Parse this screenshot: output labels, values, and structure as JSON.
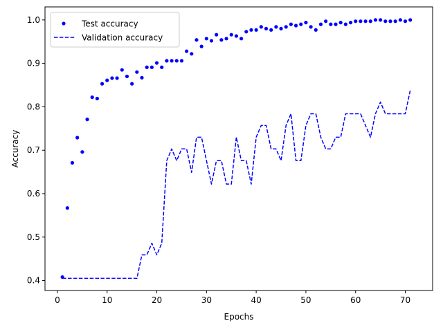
{
  "chart_data": {
    "type": "line",
    "title": "",
    "xlabel": "Epochs",
    "ylabel": "Accuracy",
    "xlim": [
      -2.5,
      75.5
    ],
    "ylim": [
      0.377,
      1.03
    ],
    "xticks": [
      0,
      10,
      20,
      30,
      40,
      50,
      60,
      70
    ],
    "yticks": [
      0.4,
      0.5,
      0.6,
      0.7,
      0.8,
      0.9,
      1.0
    ],
    "ytick_labels": [
      "0.4",
      "0.5",
      "0.6",
      "0.7",
      "0.8",
      "0.9",
      "1.0"
    ],
    "grid": false,
    "legend_position": "upper-left",
    "x": [
      1,
      2,
      3,
      4,
      5,
      6,
      7,
      8,
      9,
      10,
      11,
      12,
      13,
      14,
      15,
      16,
      17,
      18,
      19,
      20,
      21,
      22,
      23,
      24,
      25,
      26,
      27,
      28,
      29,
      30,
      31,
      32,
      33,
      34,
      35,
      36,
      37,
      38,
      39,
      40,
      41,
      42,
      43,
      44,
      45,
      46,
      47,
      48,
      49,
      50,
      51,
      52,
      53,
      54,
      55,
      56,
      57,
      58,
      59,
      60,
      61,
      62,
      63,
      64,
      65,
      66,
      67,
      68,
      69,
      70,
      71
    ],
    "series": [
      {
        "name": "Test accuracy",
        "style": "dots",
        "color": "#0000ff",
        "values": [
          0.408,
          0.567,
          0.671,
          0.729,
          0.696,
          0.771,
          0.822,
          0.819,
          0.853,
          0.861,
          0.866,
          0.866,
          0.885,
          0.87,
          0.853,
          0.88,
          0.867,
          0.891,
          0.891,
          0.901,
          0.891,
          0.906,
          0.906,
          0.906,
          0.906,
          0.928,
          0.922,
          0.954,
          0.939,
          0.957,
          0.952,
          0.966,
          0.954,
          0.957,
          0.966,
          0.963,
          0.957,
          0.973,
          0.977,
          0.977,
          0.984,
          0.98,
          0.977,
          0.984,
          0.98,
          0.984,
          0.99,
          0.987,
          0.99,
          0.994,
          0.984,
          0.977,
          0.99,
          0.997,
          0.99,
          0.99,
          0.994,
          0.99,
          0.994,
          0.997,
          0.997,
          0.997,
          0.997,
          1.0,
          1.0,
          0.997,
          0.997,
          0.997,
          1.0,
          0.997,
          1.0
        ]
      },
      {
        "name": "Validation accuracy",
        "style": "dashed",
        "color": "#0000ff",
        "values": [
          0.405,
          0.405,
          0.405,
          0.405,
          0.405,
          0.405,
          0.405,
          0.405,
          0.405,
          0.405,
          0.405,
          0.405,
          0.405,
          0.405,
          0.405,
          0.405,
          0.459,
          0.459,
          0.486,
          0.459,
          0.486,
          0.676,
          0.703,
          0.676,
          0.703,
          0.703,
          0.649,
          0.73,
          0.73,
          0.676,
          0.622,
          0.676,
          0.676,
          0.622,
          0.622,
          0.73,
          0.676,
          0.676,
          0.622,
          0.73,
          0.757,
          0.757,
          0.703,
          0.703,
          0.676,
          0.757,
          0.784,
          0.676,
          0.676,
          0.757,
          0.784,
          0.784,
          0.73,
          0.703,
          0.703,
          0.73,
          0.73,
          0.784,
          0.784,
          0.784,
          0.784,
          0.757,
          0.73,
          0.784,
          0.811,
          0.784,
          0.784,
          0.784,
          0.784,
          0.784,
          0.838
        ]
      }
    ]
  }
}
